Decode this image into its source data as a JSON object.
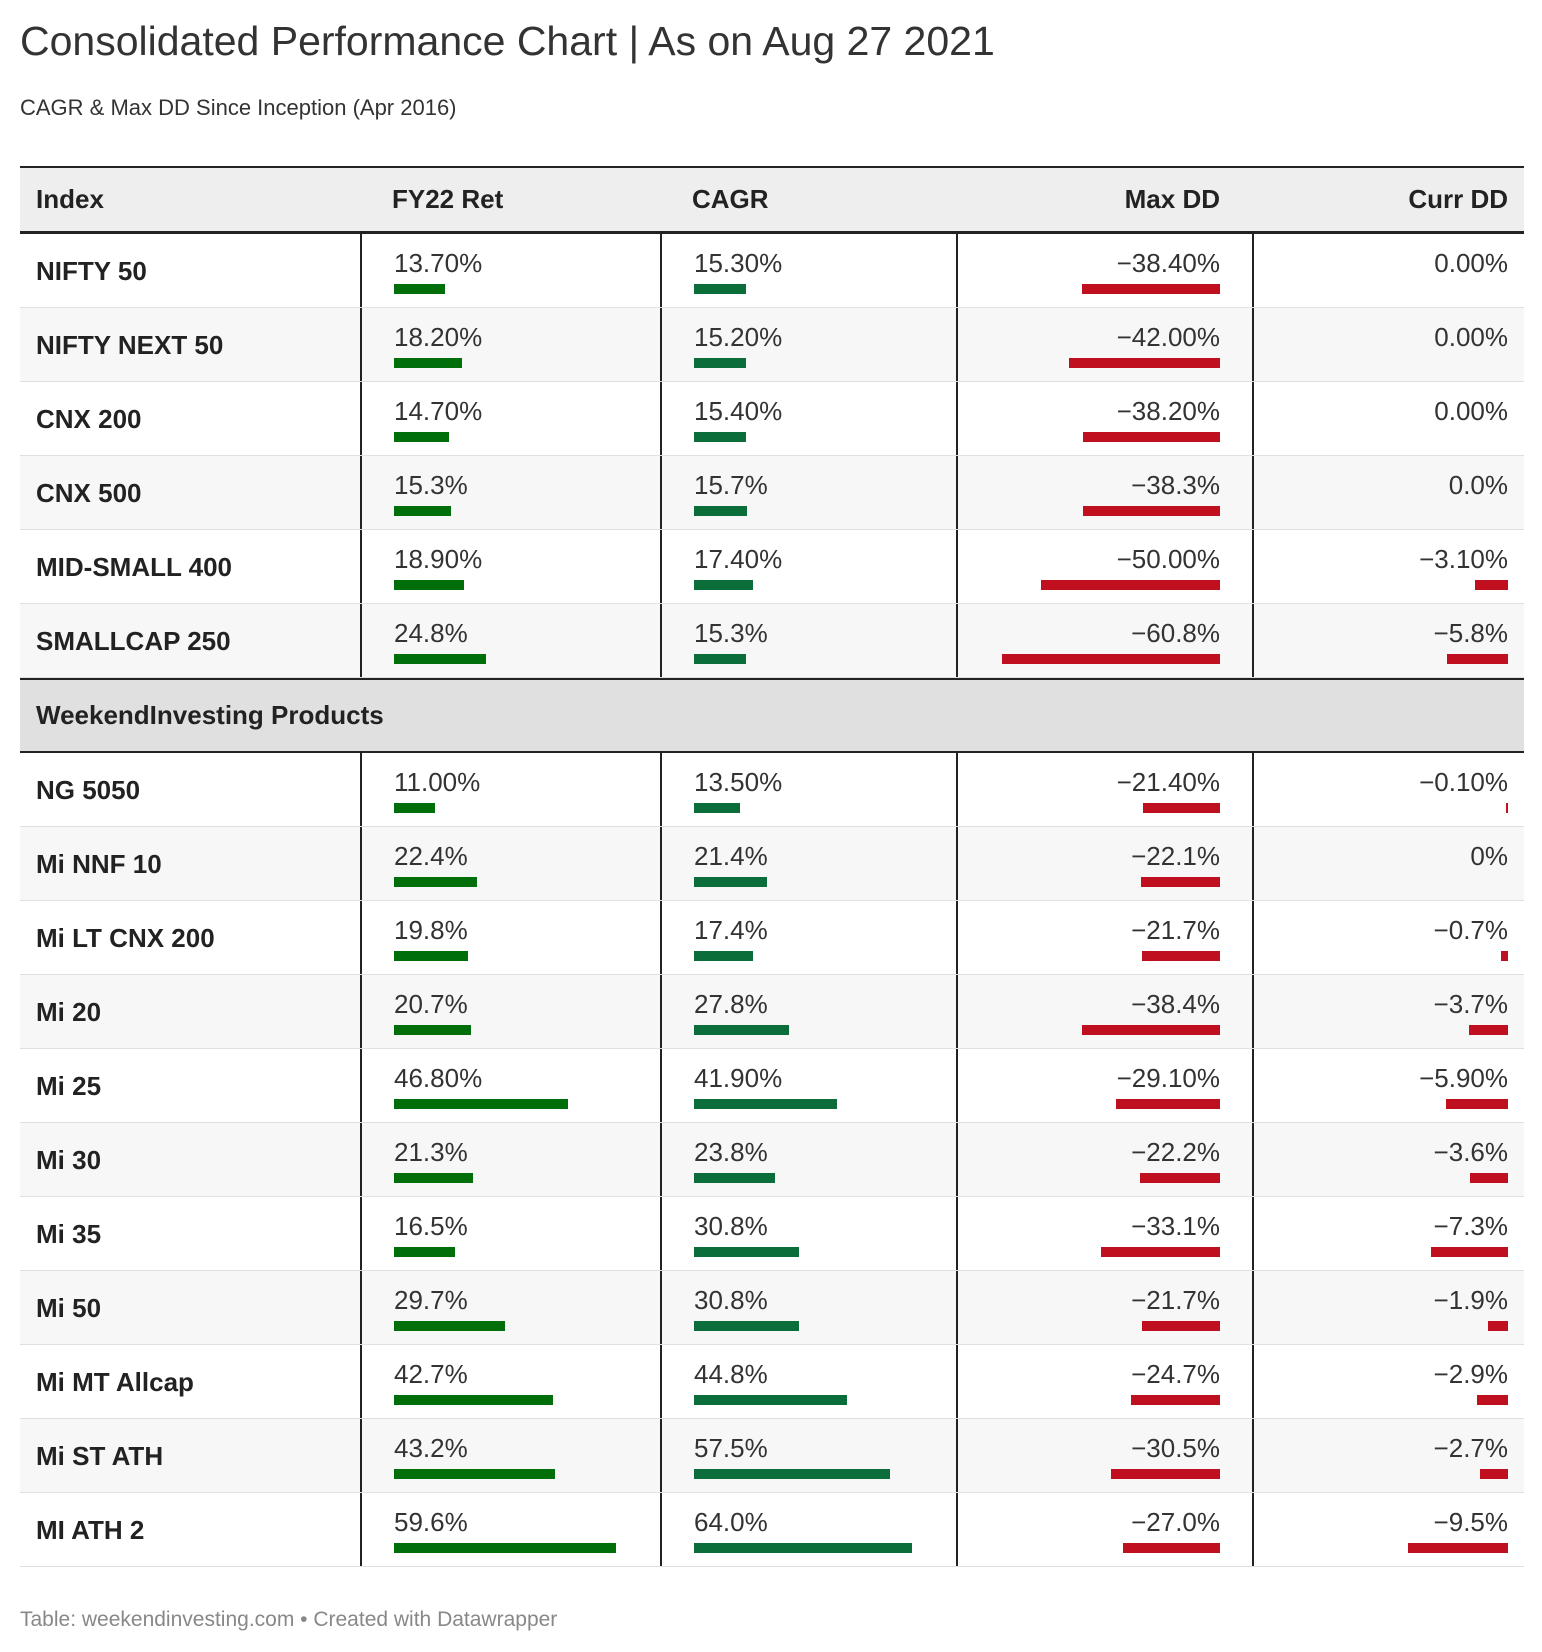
{
  "title": "Consolidated Performance Chart | As on Aug 27 2021",
  "subtitle": "CAGR & Max DD Since Inception (Apr 2016)",
  "footer": "Table: weekendinvesting.com • Created with Datawrapper",
  "colors": {
    "positive": "#006e09",
    "cagr": "#0b6e3a",
    "negative": "#c0101f"
  },
  "chart_data": {
    "type": "table",
    "columns": [
      "Index",
      "FY22 Ret",
      "CAGR",
      "Max DD",
      "Curr DD"
    ],
    "bar_scale_max": {
      "fy22": 59.6,
      "cagr": 64.0,
      "maxdd": 60.8,
      "currdd": 9.5
    },
    "groups": [
      {
        "label": "",
        "rows": [
          {
            "name": "NIFTY 50",
            "fy22": "13.70%",
            "fy22_v": 13.7,
            "cagr": "15.30%",
            "cagr_v": 15.3,
            "maxdd": "−38.40%",
            "maxdd_v": 38.4,
            "currdd": "0.00%",
            "currdd_v": 0
          },
          {
            "name": "NIFTY NEXT 50",
            "fy22": "18.20%",
            "fy22_v": 18.2,
            "cagr": "15.20%",
            "cagr_v": 15.2,
            "maxdd": "−42.00%",
            "maxdd_v": 42.0,
            "currdd": "0.00%",
            "currdd_v": 0
          },
          {
            "name": "CNX 200",
            "fy22": "14.70%",
            "fy22_v": 14.7,
            "cagr": "15.40%",
            "cagr_v": 15.4,
            "maxdd": "−38.20%",
            "maxdd_v": 38.2,
            "currdd": "0.00%",
            "currdd_v": 0
          },
          {
            "name": "CNX 500",
            "fy22": "15.3%",
            "fy22_v": 15.3,
            "cagr": "15.7%",
            "cagr_v": 15.7,
            "maxdd": "−38.3%",
            "maxdd_v": 38.3,
            "currdd": "0.0%",
            "currdd_v": 0
          },
          {
            "name": "MID-SMALL 400",
            "fy22": "18.90%",
            "fy22_v": 18.9,
            "cagr": "17.40%",
            "cagr_v": 17.4,
            "maxdd": "−50.00%",
            "maxdd_v": 50.0,
            "currdd": "−3.10%",
            "currdd_v": 3.1
          },
          {
            "name": "SMALLCAP 250",
            "fy22": "24.8%",
            "fy22_v": 24.8,
            "cagr": "15.3%",
            "cagr_v": 15.3,
            "maxdd": "−60.8%",
            "maxdd_v": 60.8,
            "currdd": "−5.8%",
            "currdd_v": 5.8
          }
        ]
      },
      {
        "label": "WeekendInvesting Products",
        "rows": [
          {
            "name": "NG 5050",
            "fy22": "11.00%",
            "fy22_v": 11.0,
            "cagr": "13.50%",
            "cagr_v": 13.5,
            "maxdd": "−21.40%",
            "maxdd_v": 21.4,
            "currdd": "−0.10%",
            "currdd_v": 0.1
          },
          {
            "name": "Mi NNF 10",
            "fy22": "22.4%",
            "fy22_v": 22.4,
            "cagr": "21.4%",
            "cagr_v": 21.4,
            "maxdd": "−22.1%",
            "maxdd_v": 22.1,
            "currdd": "0%",
            "currdd_v": 0
          },
          {
            "name": "Mi LT CNX 200",
            "fy22": "19.8%",
            "fy22_v": 19.8,
            "cagr": "17.4%",
            "cagr_v": 17.4,
            "maxdd": "−21.7%",
            "maxdd_v": 21.7,
            "currdd": "−0.7%",
            "currdd_v": 0.7
          },
          {
            "name": "Mi 20",
            "fy22": "20.7%",
            "fy22_v": 20.7,
            "cagr": "27.8%",
            "cagr_v": 27.8,
            "maxdd": "−38.4%",
            "maxdd_v": 38.4,
            "currdd": "−3.7%",
            "currdd_v": 3.7
          },
          {
            "name": "Mi 25",
            "fy22": "46.80%",
            "fy22_v": 46.8,
            "cagr": "41.90%",
            "cagr_v": 41.9,
            "maxdd": "−29.10%",
            "maxdd_v": 29.1,
            "currdd": "−5.90%",
            "currdd_v": 5.9
          },
          {
            "name": "Mi 30",
            "fy22": "21.3%",
            "fy22_v": 21.3,
            "cagr": "23.8%",
            "cagr_v": 23.8,
            "maxdd": "−22.2%",
            "maxdd_v": 22.2,
            "currdd": "−3.6%",
            "currdd_v": 3.6
          },
          {
            "name": "Mi 35",
            "fy22": "16.5%",
            "fy22_v": 16.5,
            "cagr": "30.8%",
            "cagr_v": 30.8,
            "maxdd": "−33.1%",
            "maxdd_v": 33.1,
            "currdd": "−7.3%",
            "currdd_v": 7.3
          },
          {
            "name": "Mi 50",
            "fy22": "29.7%",
            "fy22_v": 29.7,
            "cagr": "30.8%",
            "cagr_v": 30.8,
            "maxdd": "−21.7%",
            "maxdd_v": 21.7,
            "currdd": "−1.9%",
            "currdd_v": 1.9
          },
          {
            "name": "Mi MT Allcap",
            "fy22": "42.7%",
            "fy22_v": 42.7,
            "cagr": "44.8%",
            "cagr_v": 44.8,
            "maxdd": "−24.7%",
            "maxdd_v": 24.7,
            "currdd": "−2.9%",
            "currdd_v": 2.9
          },
          {
            "name": "Mi ST ATH",
            "fy22": "43.2%",
            "fy22_v": 43.2,
            "cagr": "57.5%",
            "cagr_v": 57.5,
            "maxdd": "−30.5%",
            "maxdd_v": 30.5,
            "currdd": "−2.7%",
            "currdd_v": 2.7
          },
          {
            "name": "MI ATH 2",
            "fy22": "59.6%",
            "fy22_v": 59.6,
            "cagr": "64.0%",
            "cagr_v": 64.0,
            "maxdd": "−27.0%",
            "maxdd_v": 27.0,
            "currdd": "−9.5%",
            "currdd_v": 9.5
          }
        ]
      }
    ]
  }
}
